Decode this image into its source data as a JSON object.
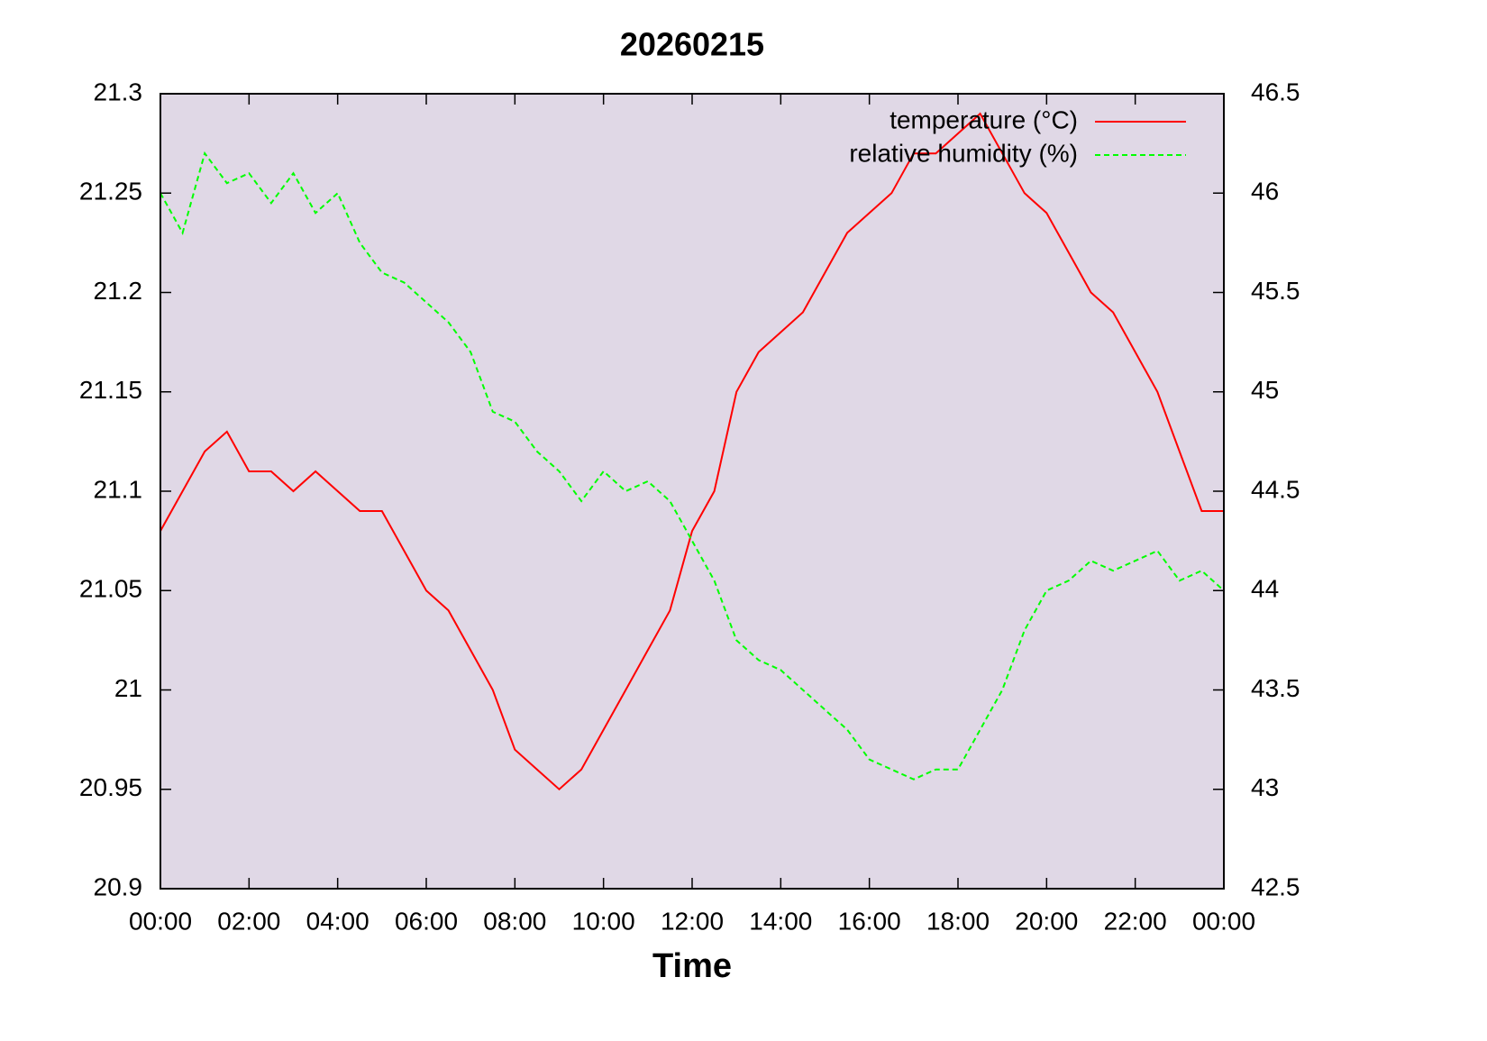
{
  "chart_data": {
    "type": "line",
    "title": "20260215",
    "xlabel": "Time",
    "x": [
      0,
      0.5,
      1,
      1.5,
      2,
      2.5,
      3,
      3.5,
      4,
      4.5,
      5,
      5.5,
      6,
      6.5,
      7,
      7.5,
      8,
      8.5,
      9,
      9.5,
      10,
      10.5,
      11,
      11.5,
      12,
      12.5,
      13,
      13.5,
      14,
      14.5,
      15,
      15.5,
      16,
      16.5,
      17,
      17.5,
      18,
      18.5,
      19,
      19.5,
      20,
      20.5,
      21,
      21.5,
      22,
      22.5,
      23,
      23.5,
      24
    ],
    "series": [
      {
        "name": "temperature (°C)",
        "color": "#ff0000",
        "dashed": false,
        "values": [
          21.08,
          21.1,
          21.12,
          21.13,
          21.11,
          21.11,
          21.1,
          21.11,
          21.1,
          21.09,
          21.09,
          21.07,
          21.05,
          21.04,
          21.02,
          21.0,
          20.97,
          20.96,
          20.95,
          20.96,
          20.98,
          21.0,
          21.02,
          21.04,
          21.08,
          21.1,
          21.15,
          21.17,
          21.18,
          21.19,
          21.21,
          21.23,
          21.24,
          21.25,
          21.27,
          21.27,
          21.28,
          21.29,
          21.27,
          21.25,
          21.24,
          21.22,
          21.2,
          21.19,
          21.17,
          21.15,
          21.12,
          21.09,
          21.09
        ]
      },
      {
        "name": "relative humidity (%)",
        "color": "#00ff00",
        "dashed": true,
        "axis": "y2",
        "values": [
          46.0,
          45.8,
          46.2,
          46.05,
          46.1,
          45.95,
          46.1,
          45.9,
          46.0,
          45.75,
          45.6,
          45.55,
          45.45,
          45.35,
          45.2,
          44.9,
          44.85,
          44.7,
          44.6,
          44.45,
          44.6,
          44.5,
          44.55,
          44.45,
          44.25,
          44.05,
          43.75,
          43.65,
          43.6,
          43.5,
          43.4,
          43.3,
          43.15,
          43.1,
          43.05,
          43.1,
          43.1,
          43.3,
          43.5,
          43.8,
          44.0,
          44.05,
          44.15,
          44.1,
          44.15,
          44.2,
          44.05,
          44.1,
          44.0
        ]
      }
    ],
    "xlim": [
      0,
      24
    ],
    "xticks": [
      {
        "value": 0,
        "label": "00:00"
      },
      {
        "value": 2,
        "label": "02:00"
      },
      {
        "value": 4,
        "label": "04:00"
      },
      {
        "value": 6,
        "label": "06:00"
      },
      {
        "value": 8,
        "label": "08:00"
      },
      {
        "value": 10,
        "label": "10:00"
      },
      {
        "value": 12,
        "label": "12:00"
      },
      {
        "value": 14,
        "label": "14:00"
      },
      {
        "value": 16,
        "label": "16:00"
      },
      {
        "value": 18,
        "label": "18:00"
      },
      {
        "value": 20,
        "label": "20:00"
      },
      {
        "value": 22,
        "label": "22:00"
      },
      {
        "value": 24,
        "label": "00:00"
      }
    ],
    "ylim": [
      20.9,
      21.3
    ],
    "yticks": [
      20.9,
      20.95,
      21,
      21.05,
      21.1,
      21.15,
      21.2,
      21.25,
      21.3
    ],
    "y2lim": [
      42.5,
      46.5
    ],
    "y2ticks": [
      42.5,
      43,
      43.5,
      44,
      44.5,
      45,
      45.5,
      46,
      46.5
    ],
    "legend": "top-right",
    "grid": false,
    "background": "#e0d8e6"
  }
}
